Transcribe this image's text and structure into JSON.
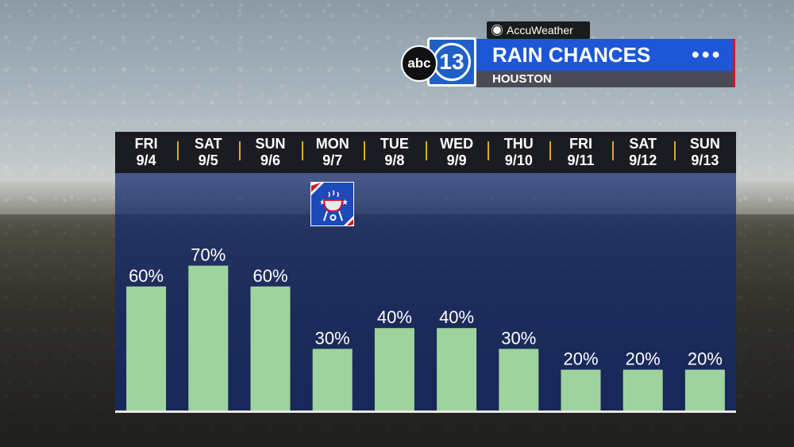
{
  "branding": {
    "accuweather": "AccuWeather",
    "abc": "abc",
    "channel": "13",
    "title": "RAIN CHANCES",
    "location": "HOUSTON",
    "menu_icon": "dots-icon"
  },
  "colors": {
    "bar": "#9fd39e",
    "plot_bg": "#142a6e",
    "header_bg": "#1a1c22",
    "divider": "#e0a82a",
    "title_bar": "#1d56d6"
  },
  "chart_data": {
    "type": "bar",
    "categories": [
      "FRI 9/4",
      "SAT 9/5",
      "SUN 9/6",
      "MON 9/7",
      "TUE 9/8",
      "WED 9/9",
      "THU 9/10",
      "FRI 9/11",
      "SAT 9/12",
      "SUN 9/13"
    ],
    "days": [
      {
        "dow": "FRI",
        "date": "9/4"
      },
      {
        "dow": "SAT",
        "date": "9/5"
      },
      {
        "dow": "SUN",
        "date": "9/6"
      },
      {
        "dow": "MON",
        "date": "9/7"
      },
      {
        "dow": "TUE",
        "date": "9/8"
      },
      {
        "dow": "WED",
        "date": "9/9"
      },
      {
        "dow": "THU",
        "date": "9/10"
      },
      {
        "dow": "FRI",
        "date": "9/11"
      },
      {
        "dow": "SAT",
        "date": "9/12"
      },
      {
        "dow": "SUN",
        "date": "9/13"
      }
    ],
    "values": [
      60,
      70,
      60,
      30,
      40,
      40,
      30,
      20,
      20,
      20
    ],
    "labels": [
      "60%",
      "70%",
      "60%",
      "30%",
      "40%",
      "40%",
      "30%",
      "20%",
      "20%",
      "20%"
    ],
    "ylim": [
      0,
      100
    ],
    "grid": false,
    "holiday_icon": "bbq-grill-icon"
  }
}
